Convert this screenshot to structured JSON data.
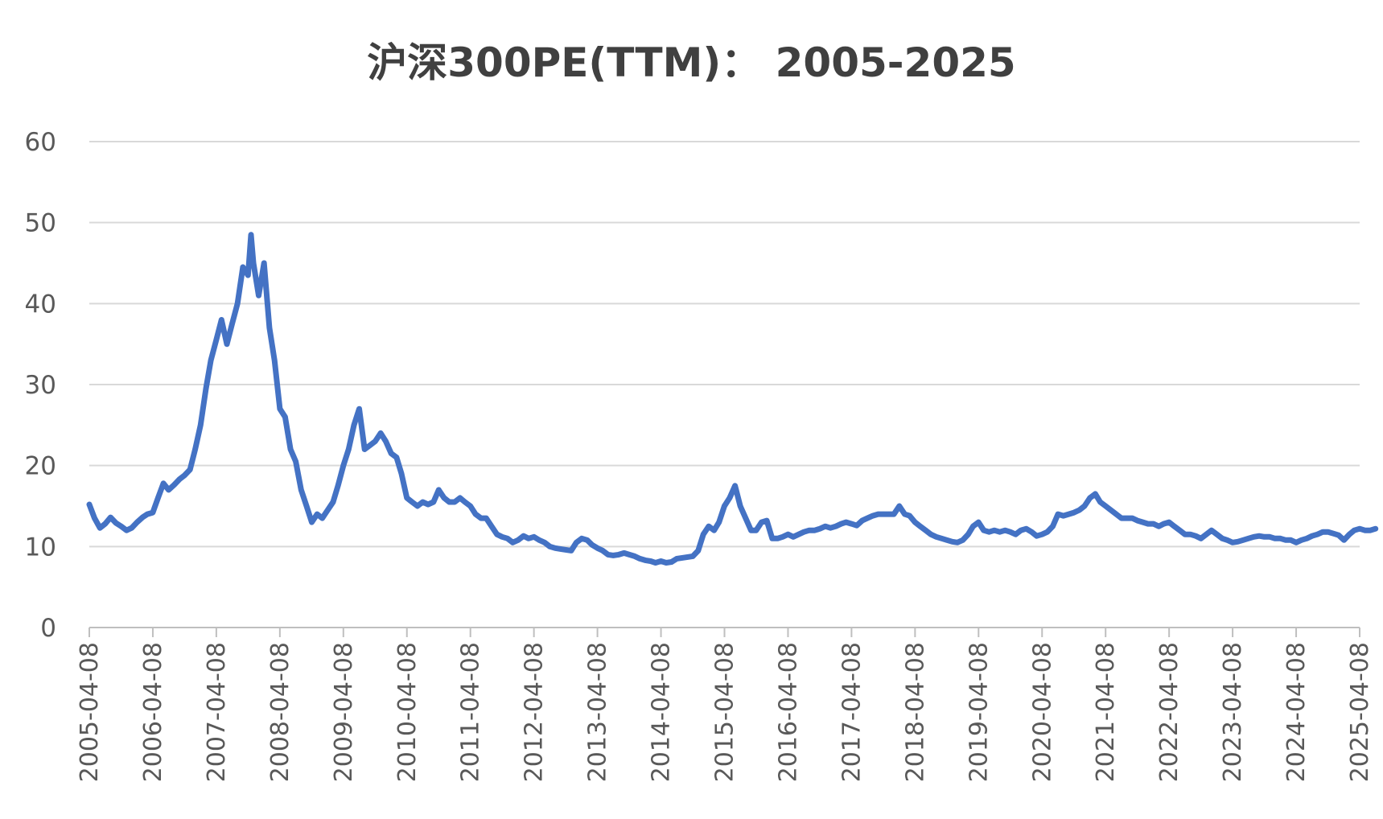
{
  "chart_data": {
    "type": "line",
    "title": "沪深300PE(TTM)： 2005-2025",
    "xlabel": "",
    "ylabel": "",
    "ylim": [
      0,
      60
    ],
    "yticks": [
      "0",
      "10",
      "20",
      "30",
      "40",
      "50",
      "60"
    ],
    "xticks": [
      "2005-04-08",
      "2006-04-08",
      "2007-04-08",
      "2008-04-08",
      "2009-04-08",
      "2010-04-08",
      "2011-04-08",
      "2012-04-08",
      "2013-04-08",
      "2014-04-08",
      "2015-04-08",
      "2016-04-08",
      "2017-04-08",
      "2018-04-08",
      "2019-04-08",
      "2020-04-08",
      "2021-04-08",
      "2022-04-08",
      "2023-04-08",
      "2024-04-08",
      "2025-04-08"
    ],
    "grid": true,
    "legend": "none",
    "line_color": "#4472C4",
    "series": [
      {
        "values": [
          [
            "2005-04-08",
            15.2
          ],
          [
            "2005-05-08",
            13.5
          ],
          [
            "2005-06-08",
            12.3
          ],
          [
            "2005-07-08",
            12.8
          ],
          [
            "2005-08-08",
            13.6
          ],
          [
            "2005-09-08",
            12.9
          ],
          [
            "2005-10-08",
            12.5
          ],
          [
            "2005-11-08",
            12.0
          ],
          [
            "2005-12-08",
            12.3
          ],
          [
            "2006-01-08",
            13.0
          ],
          [
            "2006-02-08",
            13.6
          ],
          [
            "2006-03-08",
            14.0
          ],
          [
            "2006-04-08",
            14.2
          ],
          [
            "2006-05-08",
            16.0
          ],
          [
            "2006-06-08",
            17.8
          ],
          [
            "2006-07-08",
            17.0
          ],
          [
            "2006-08-08",
            17.6
          ],
          [
            "2006-09-08",
            18.3
          ],
          [
            "2006-10-08",
            18.8
          ],
          [
            "2006-11-08",
            19.5
          ],
          [
            "2006-12-08",
            22.0
          ],
          [
            "2007-01-08",
            25.0
          ],
          [
            "2007-02-08",
            29.5
          ],
          [
            "2007-03-08",
            33.0
          ],
          [
            "2007-04-08",
            35.5
          ],
          [
            "2007-05-08",
            38.0
          ],
          [
            "2007-06-08",
            35.0
          ],
          [
            "2007-07-08",
            37.5
          ],
          [
            "2007-08-08",
            40.0
          ],
          [
            "2007-09-08",
            44.5
          ],
          [
            "2007-10-08",
            43.5
          ],
          [
            "2007-10-25",
            48.5
          ],
          [
            "2007-11-08",
            45.0
          ],
          [
            "2007-12-08",
            41.0
          ],
          [
            "2008-01-08",
            45.0
          ],
          [
            "2008-02-08",
            37.0
          ],
          [
            "2008-03-08",
            33.0
          ],
          [
            "2008-04-08",
            27.0
          ],
          [
            "2008-05-08",
            26.0
          ],
          [
            "2008-06-08",
            22.0
          ],
          [
            "2008-07-08",
            20.5
          ],
          [
            "2008-08-08",
            17.0
          ],
          [
            "2008-09-08",
            15.0
          ],
          [
            "2008-10-08",
            13.0
          ],
          [
            "2008-11-08",
            14.0
          ],
          [
            "2008-12-08",
            13.5
          ],
          [
            "2009-01-08",
            14.5
          ],
          [
            "2009-02-08",
            15.5
          ],
          [
            "2009-03-08",
            17.5
          ],
          [
            "2009-04-08",
            20.0
          ],
          [
            "2009-05-08",
            22.0
          ],
          [
            "2009-06-08",
            25.0
          ],
          [
            "2009-07-08",
            27.0
          ],
          [
            "2009-08-08",
            22.0
          ],
          [
            "2009-09-08",
            22.5
          ],
          [
            "2009-10-08",
            23.0
          ],
          [
            "2009-11-08",
            24.0
          ],
          [
            "2009-12-08",
            23.0
          ],
          [
            "2010-01-08",
            21.5
          ],
          [
            "2010-02-08",
            21.0
          ],
          [
            "2010-03-08",
            19.0
          ],
          [
            "2010-04-08",
            16.0
          ],
          [
            "2010-05-08",
            15.5
          ],
          [
            "2010-06-08",
            15.0
          ],
          [
            "2010-07-08",
            15.5
          ],
          [
            "2010-08-08",
            15.2
          ],
          [
            "2010-09-08",
            15.5
          ],
          [
            "2010-10-08",
            17.0
          ],
          [
            "2010-11-08",
            16.0
          ],
          [
            "2010-12-08",
            15.5
          ],
          [
            "2011-01-08",
            15.5
          ],
          [
            "2011-02-08",
            16.0
          ],
          [
            "2011-03-08",
            15.5
          ],
          [
            "2011-04-08",
            15.0
          ],
          [
            "2011-05-08",
            14.0
          ],
          [
            "2011-06-08",
            13.5
          ],
          [
            "2011-07-08",
            13.5
          ],
          [
            "2011-08-08",
            12.5
          ],
          [
            "2011-09-08",
            11.5
          ],
          [
            "2011-10-08",
            11.2
          ],
          [
            "2011-11-08",
            11.0
          ],
          [
            "2011-12-08",
            10.5
          ],
          [
            "2012-01-08",
            10.8
          ],
          [
            "2012-02-08",
            11.3
          ],
          [
            "2012-03-08",
            11.0
          ],
          [
            "2012-04-08",
            11.2
          ],
          [
            "2012-05-08",
            10.8
          ],
          [
            "2012-06-08",
            10.5
          ],
          [
            "2012-07-08",
            10.0
          ],
          [
            "2012-08-08",
            9.8
          ],
          [
            "2012-09-08",
            9.7
          ],
          [
            "2012-10-08",
            9.6
          ],
          [
            "2012-11-08",
            9.5
          ],
          [
            "2012-12-08",
            10.5
          ],
          [
            "2013-01-08",
            11.0
          ],
          [
            "2013-02-08",
            10.8
          ],
          [
            "2013-03-08",
            10.2
          ],
          [
            "2013-04-08",
            9.8
          ],
          [
            "2013-05-08",
            9.5
          ],
          [
            "2013-06-08",
            9.0
          ],
          [
            "2013-07-08",
            8.9
          ],
          [
            "2013-08-08",
            9.0
          ],
          [
            "2013-09-08",
            9.2
          ],
          [
            "2013-10-08",
            9.0
          ],
          [
            "2013-11-08",
            8.8
          ],
          [
            "2013-12-08",
            8.5
          ],
          [
            "2014-01-08",
            8.3
          ],
          [
            "2014-02-08",
            8.2
          ],
          [
            "2014-03-08",
            8.0
          ],
          [
            "2014-04-08",
            8.2
          ],
          [
            "2014-05-08",
            8.0
          ],
          [
            "2014-06-08",
            8.1
          ],
          [
            "2014-07-08",
            8.5
          ],
          [
            "2014-08-08",
            8.6
          ],
          [
            "2014-09-08",
            8.7
          ],
          [
            "2014-10-08",
            8.8
          ],
          [
            "2014-11-08",
            9.5
          ],
          [
            "2014-12-08",
            11.5
          ],
          [
            "2015-01-08",
            12.5
          ],
          [
            "2015-02-08",
            12.0
          ],
          [
            "2015-03-08",
            13.0
          ],
          [
            "2015-04-08",
            15.0
          ],
          [
            "2015-05-08",
            16.0
          ],
          [
            "2015-06-08",
            17.5
          ],
          [
            "2015-07-08",
            15.0
          ],
          [
            "2015-08-08",
            13.5
          ],
          [
            "2015-09-08",
            12.0
          ],
          [
            "2015-10-08",
            12.0
          ],
          [
            "2015-11-08",
            13.0
          ],
          [
            "2015-12-08",
            13.2
          ],
          [
            "2016-01-08",
            11.0
          ],
          [
            "2016-02-08",
            11.0
          ],
          [
            "2016-03-08",
            11.2
          ],
          [
            "2016-04-08",
            11.5
          ],
          [
            "2016-05-08",
            11.2
          ],
          [
            "2016-06-08",
            11.5
          ],
          [
            "2016-07-08",
            11.8
          ],
          [
            "2016-08-08",
            12.0
          ],
          [
            "2016-09-08",
            12.0
          ],
          [
            "2016-10-08",
            12.2
          ],
          [
            "2016-11-08",
            12.5
          ],
          [
            "2016-12-08",
            12.3
          ],
          [
            "2017-01-08",
            12.5
          ],
          [
            "2017-02-08",
            12.8
          ],
          [
            "2017-03-08",
            13.0
          ],
          [
            "2017-04-08",
            12.8
          ],
          [
            "2017-05-08",
            12.6
          ],
          [
            "2017-06-08",
            13.2
          ],
          [
            "2017-07-08",
            13.5
          ],
          [
            "2017-08-08",
            13.8
          ],
          [
            "2017-09-08",
            14.0
          ],
          [
            "2017-10-08",
            14.0
          ],
          [
            "2017-11-08",
            14.0
          ],
          [
            "2017-12-08",
            14.0
          ],
          [
            "2018-01-08",
            15.0
          ],
          [
            "2018-02-08",
            14.0
          ],
          [
            "2018-03-08",
            13.8
          ],
          [
            "2018-04-08",
            13.0
          ],
          [
            "2018-05-08",
            12.5
          ],
          [
            "2018-06-08",
            12.0
          ],
          [
            "2018-07-08",
            11.5
          ],
          [
            "2018-08-08",
            11.2
          ],
          [
            "2018-09-08",
            11.0
          ],
          [
            "2018-10-08",
            10.8
          ],
          [
            "2018-11-08",
            10.6
          ],
          [
            "2018-12-08",
            10.5
          ],
          [
            "2019-01-08",
            10.8
          ],
          [
            "2019-02-08",
            11.5
          ],
          [
            "2019-03-08",
            12.5
          ],
          [
            "2019-04-08",
            13.0
          ],
          [
            "2019-05-08",
            12.0
          ],
          [
            "2019-06-08",
            11.8
          ],
          [
            "2019-07-08",
            12.0
          ],
          [
            "2019-08-08",
            11.8
          ],
          [
            "2019-09-08",
            12.0
          ],
          [
            "2019-10-08",
            11.8
          ],
          [
            "2019-11-08",
            11.5
          ],
          [
            "2019-12-08",
            12.0
          ],
          [
            "2020-01-08",
            12.2
          ],
          [
            "2020-02-08",
            11.8
          ],
          [
            "2020-03-08",
            11.3
          ],
          [
            "2020-04-08",
            11.5
          ],
          [
            "2020-05-08",
            11.8
          ],
          [
            "2020-06-08",
            12.5
          ],
          [
            "2020-07-08",
            14.0
          ],
          [
            "2020-08-08",
            13.8
          ],
          [
            "2020-09-08",
            14.0
          ],
          [
            "2020-10-08",
            14.2
          ],
          [
            "2020-11-08",
            14.5
          ],
          [
            "2020-12-08",
            15.0
          ],
          [
            "2021-01-08",
            16.0
          ],
          [
            "2021-02-08",
            16.5
          ],
          [
            "2021-03-08",
            15.5
          ],
          [
            "2021-04-08",
            15.0
          ],
          [
            "2021-05-08",
            14.5
          ],
          [
            "2021-06-08",
            14.0
          ],
          [
            "2021-07-08",
            13.5
          ],
          [
            "2021-08-08",
            13.5
          ],
          [
            "2021-09-08",
            13.5
          ],
          [
            "2021-10-08",
            13.2
          ],
          [
            "2021-11-08",
            13.0
          ],
          [
            "2021-12-08",
            12.8
          ],
          [
            "2022-01-08",
            12.8
          ],
          [
            "2022-02-08",
            12.5
          ],
          [
            "2022-03-08",
            12.8
          ],
          [
            "2022-04-08",
            13.0
          ],
          [
            "2022-05-08",
            12.5
          ],
          [
            "2022-06-08",
            12.0
          ],
          [
            "2022-07-08",
            11.5
          ],
          [
            "2022-08-08",
            11.5
          ],
          [
            "2022-09-08",
            11.3
          ],
          [
            "2022-10-08",
            11.0
          ],
          [
            "2022-11-08",
            11.5
          ],
          [
            "2022-12-08",
            12.0
          ],
          [
            "2023-01-08",
            11.5
          ],
          [
            "2023-02-08",
            11.0
          ],
          [
            "2023-03-08",
            10.8
          ],
          [
            "2023-04-08",
            10.5
          ],
          [
            "2023-05-08",
            10.6
          ],
          [
            "2023-06-08",
            10.8
          ],
          [
            "2023-07-08",
            11.0
          ],
          [
            "2023-08-08",
            11.2
          ],
          [
            "2023-09-08",
            11.3
          ],
          [
            "2023-10-08",
            11.2
          ],
          [
            "2023-11-08",
            11.2
          ],
          [
            "2023-12-08",
            11.0
          ],
          [
            "2024-01-08",
            11.0
          ],
          [
            "2024-02-08",
            10.8
          ],
          [
            "2024-03-08",
            10.8
          ],
          [
            "2024-04-08",
            10.5
          ],
          [
            "2024-05-08",
            10.8
          ],
          [
            "2024-06-08",
            11.0
          ],
          [
            "2024-07-08",
            11.3
          ],
          [
            "2024-08-08",
            11.5
          ],
          [
            "2024-09-08",
            11.8
          ],
          [
            "2024-10-08",
            11.8
          ],
          [
            "2024-11-08",
            11.6
          ],
          [
            "2024-12-08",
            11.4
          ],
          [
            "2025-01-08",
            10.8
          ],
          [
            "2025-02-08",
            11.5
          ],
          [
            "2025-03-08",
            12.0
          ],
          [
            "2025-04-08",
            12.2
          ],
          [
            "2025-05-08",
            12.0
          ],
          [
            "2025-06-08",
            12.0
          ],
          [
            "2025-07-08",
            12.2
          ]
        ]
      }
    ]
  }
}
